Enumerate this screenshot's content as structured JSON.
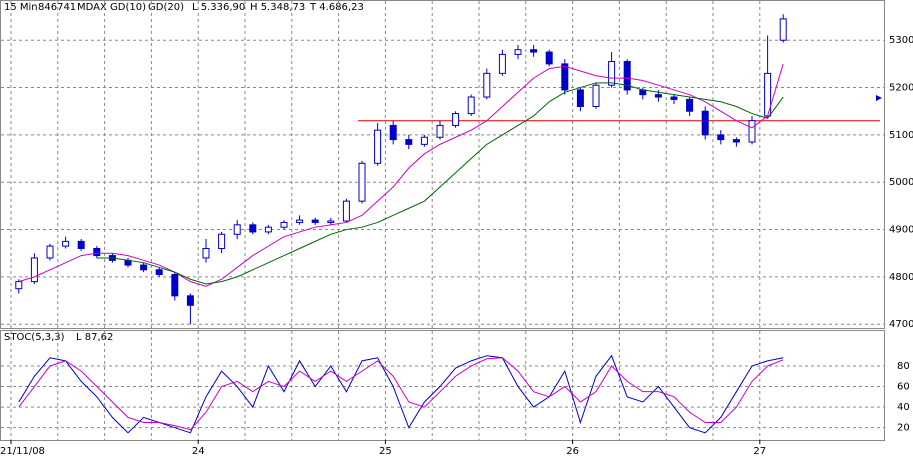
{
  "chart_data": {
    "type": "candlestick",
    "header": [
      "15 Min",
      "846741",
      "MDAX"
    ],
    "ma_labels": [
      {
        "text": "GD(10)",
        "color": "#cc00cc"
      },
      {
        "text": "GD(20)",
        "color": "#006600"
      }
    ],
    "stats": [
      "L  5.336,90",
      "H  5.348,73",
      "T  4.686,23"
    ],
    "categories": [
      "21/11/08",
      null,
      null,
      null,
      null,
      null,
      null,
      null,
      null,
      null,
      null,
      null,
      "24",
      null,
      null,
      null,
      null,
      null,
      null,
      null,
      null,
      null,
      null,
      null,
      "25",
      null,
      null,
      null,
      null,
      null,
      null,
      null,
      null,
      null,
      null,
      null,
      "26",
      null,
      null,
      null,
      null,
      null,
      null,
      null,
      null,
      null,
      null,
      null,
      "27",
      null
    ],
    "open": [
      4775,
      4790,
      4840,
      4865,
      4875,
      4860,
      4845,
      4835,
      4825,
      4815,
      4805,
      4760,
      4840,
      4860,
      4890,
      4910,
      4895,
      4905,
      4915,
      4920,
      4915,
      4918,
      4960,
      5040,
      5120,
      5090,
      5080,
      5095,
      5120,
      5145,
      5180,
      5230,
      5270,
      5280,
      5275,
      5250,
      5195,
      5160,
      5205,
      5255,
      5195,
      5185,
      5180,
      5175,
      5150,
      5100,
      5090,
      5085,
      5140,
      5300
    ],
    "high": [
      4795,
      4850,
      4870,
      4885,
      4880,
      4865,
      4850,
      4840,
      4830,
      4820,
      4810,
      4765,
      4880,
      4895,
      4920,
      4915,
      4910,
      4920,
      4930,
      4925,
      4925,
      4965,
      5045,
      5125,
      5130,
      5100,
      5100,
      5130,
      5150,
      5185,
      5240,
      5280,
      5290,
      5290,
      5280,
      5260,
      5200,
      5210,
      5275,
      5260,
      5200,
      5195,
      5185,
      5180,
      5160,
      5110,
      5095,
      5140,
      5310,
      5355
    ],
    "low": [
      4765,
      4785,
      4835,
      4860,
      4855,
      4840,
      4830,
      4820,
      4810,
      4800,
      4750,
      4700,
      4830,
      4850,
      4880,
      4890,
      4890,
      4900,
      4910,
      4910,
      4910,
      4915,
      4955,
      5035,
      5080,
      5070,
      5075,
      5090,
      5115,
      5140,
      5175,
      5225,
      5260,
      5265,
      5245,
      5185,
      5150,
      5155,
      5200,
      5185,
      5175,
      5170,
      5165,
      5140,
      5090,
      5080,
      5075,
      5080,
      5135,
      5295
    ],
    "close": [
      4790,
      4840,
      4865,
      4875,
      4860,
      4845,
      4835,
      4825,
      4815,
      4805,
      4760,
      4740,
      4860,
      4890,
      4910,
      4895,
      4905,
      4915,
      4920,
      4915,
      4918,
      4960,
      5040,
      5110,
      5090,
      5080,
      5095,
      5120,
      5145,
      5180,
      5230,
      5270,
      5280,
      5275,
      5250,
      5195,
      5160,
      5205,
      5255,
      5195,
      5185,
      5180,
      5175,
      5150,
      5100,
      5090,
      5085,
      5130,
      5230,
      5345
    ],
    "candle_color": "#0000cc",
    "series": [
      {
        "name": "GD(10)",
        "color": "#cc00cc",
        "values": [
          4790,
          4800,
          4815,
          4830,
          4845,
          4850,
          4850,
          4845,
          4835,
          4825,
          4810,
          4790,
          4780,
          4795,
          4820,
          4845,
          4865,
          4885,
          4895,
          4905,
          4910,
          4915,
          4930,
          4960,
          4990,
          5030,
          5060,
          5080,
          5095,
          5110,
          5130,
          5160,
          5190,
          5220,
          5240,
          5245,
          5235,
          5225,
          5220,
          5220,
          5215,
          5205,
          5195,
          5185,
          5170,
          5150,
          5130,
          5115,
          5140,
          5250
        ]
      },
      {
        "name": "GD(20)",
        "color": "#006600",
        "values": [
          null,
          null,
          null,
          null,
          null,
          4840,
          4840,
          4835,
          4830,
          4820,
          4810,
          4795,
          4785,
          4790,
          4800,
          4815,
          4830,
          4845,
          4860,
          4875,
          4890,
          4900,
          4905,
          4915,
          4930,
          4945,
          4960,
          4990,
          5020,
          5050,
          5080,
          5100,
          5120,
          5140,
          5170,
          5190,
          5200,
          5210,
          5210,
          5205,
          5195,
          5190,
          5185,
          5180,
          5175,
          5170,
          5160,
          5145,
          5135,
          5180
        ]
      }
    ],
    "hline": {
      "value": 5130,
      "color": "#dd0000"
    },
    "ylim": [
      4692,
      5385
    ],
    "yticks": [
      4700,
      4800,
      4900,
      5000,
      5100,
      5200,
      5300
    ],
    "stoch": {
      "title": "STOC(5,3,3)",
      "stat": "L  87,62",
      "series": [
        {
          "name": "K",
          "color": "#0000cc",
          "values": [
            45,
            70,
            88,
            85,
            65,
            50,
            30,
            15,
            30,
            25,
            20,
            15,
            50,
            75,
            60,
            40,
            80,
            55,
            85,
            60,
            80,
            55,
            85,
            88,
            60,
            20,
            45,
            60,
            78,
            85,
            90,
            88,
            60,
            40,
            50,
            75,
            25,
            70,
            90,
            50,
            45,
            60,
            40,
            20,
            15,
            30,
            55,
            80,
            85,
            88
          ]
        },
        {
          "name": "D",
          "color": "#cc00cc",
          "values": [
            40,
            60,
            80,
            85,
            75,
            60,
            45,
            30,
            25,
            25,
            22,
            18,
            35,
            60,
            65,
            55,
            65,
            60,
            75,
            65,
            75,
            65,
            75,
            85,
            70,
            45,
            40,
            55,
            70,
            80,
            87,
            88,
            75,
            55,
            50,
            60,
            45,
            55,
            80,
            65,
            55,
            55,
            50,
            35,
            25,
            25,
            40,
            65,
            80,
            86
          ]
        }
      ],
      "ylim": [
        8,
        115
      ],
      "yticks": [
        20,
        40,
        60,
        80
      ]
    }
  }
}
